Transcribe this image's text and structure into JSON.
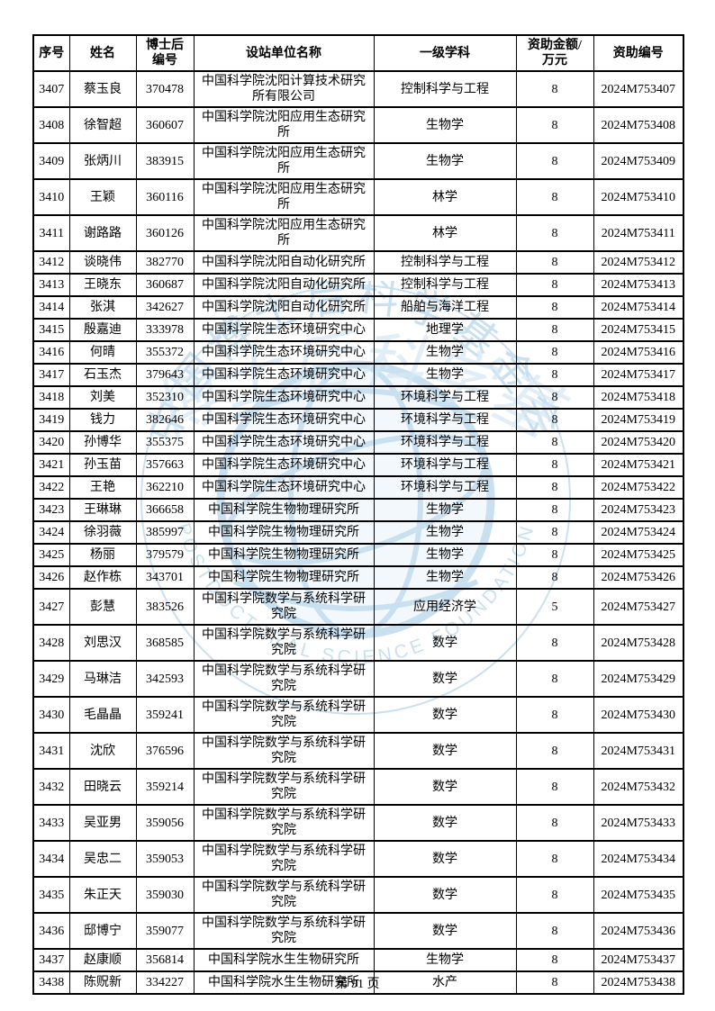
{
  "page": {
    "footer": "第 91 页"
  },
  "watermark": {
    "cn_text": "中国博士后科学基金会",
    "en_text": "POSTDOCTORAL SCIENCE FOUNDATION",
    "cn_calligraphy": "中国博士后科学基金会",
    "color": "#9ec8e4"
  },
  "table": {
    "headers": [
      "序号",
      "姓名",
      "博士后\n编号",
      "设站单位名称",
      "一级学科",
      "资助金额/\n万元",
      "资助编号"
    ],
    "columns": [
      "seq",
      "name",
      "postdoc-no",
      "institution",
      "discipline",
      "amount",
      "grant-no"
    ],
    "rows": [
      [
        "3407",
        "蔡玉良",
        "370478",
        "中国科学院沈阳计算技术研究所有限公司",
        "控制科学与工程",
        "8",
        "2024M753407"
      ],
      [
        "3408",
        "徐智超",
        "360607",
        "中国科学院沈阳应用生态研究所",
        "生物学",
        "8",
        "2024M753408"
      ],
      [
        "3409",
        "张炳川",
        "383915",
        "中国科学院沈阳应用生态研究所",
        "生物学",
        "8",
        "2024M753409"
      ],
      [
        "3410",
        "王颖",
        "360116",
        "中国科学院沈阳应用生态研究所",
        "林学",
        "8",
        "2024M753410"
      ],
      [
        "3411",
        "谢路路",
        "360126",
        "中国科学院沈阳应用生态研究所",
        "林学",
        "8",
        "2024M753411"
      ],
      [
        "3412",
        "谈晓伟",
        "382770",
        "中国科学院沈阳自动化研究所",
        "控制科学与工程",
        "8",
        "2024M753412"
      ],
      [
        "3413",
        "王晓东",
        "360687",
        "中国科学院沈阳自动化研究所",
        "控制科学与工程",
        "8",
        "2024M753413"
      ],
      [
        "3414",
        "张淇",
        "342627",
        "中国科学院沈阳自动化研究所",
        "船舶与海洋工程",
        "8",
        "2024M753414"
      ],
      [
        "3415",
        "殷嘉迪",
        "333978",
        "中国科学院生态环境研究中心",
        "地理学",
        "8",
        "2024M753415"
      ],
      [
        "3416",
        "何晴",
        "355372",
        "中国科学院生态环境研究中心",
        "生物学",
        "8",
        "2024M753416"
      ],
      [
        "3417",
        "石玉杰",
        "379643",
        "中国科学院生态环境研究中心",
        "生物学",
        "8",
        "2024M753417"
      ],
      [
        "3418",
        "刘美",
        "352310",
        "中国科学院生态环境研究中心",
        "环境科学与工程",
        "8",
        "2024M753418"
      ],
      [
        "3419",
        "钱力",
        "382646",
        "中国科学院生态环境研究中心",
        "环境科学与工程",
        "8",
        "2024M753419"
      ],
      [
        "3420",
        "孙博华",
        "355375",
        "中国科学院生态环境研究中心",
        "环境科学与工程",
        "8",
        "2024M753420"
      ],
      [
        "3421",
        "孙玉苗",
        "357663",
        "中国科学院生态环境研究中心",
        "环境科学与工程",
        "8",
        "2024M753421"
      ],
      [
        "3422",
        "王艳",
        "362210",
        "中国科学院生态环境研究中心",
        "环境科学与工程",
        "8",
        "2024M753422"
      ],
      [
        "3423",
        "王琳琳",
        "366658",
        "中国科学院生物物理研究所",
        "生物学",
        "8",
        "2024M753423"
      ],
      [
        "3424",
        "徐羽薇",
        "385997",
        "中国科学院生物物理研究所",
        "生物学",
        "8",
        "2024M753424"
      ],
      [
        "3425",
        "杨丽",
        "379579",
        "中国科学院生物物理研究所",
        "生物学",
        "8",
        "2024M753425"
      ],
      [
        "3426",
        "赵作栋",
        "343701",
        "中国科学院生物物理研究所",
        "生物学",
        "8",
        "2024M753426"
      ],
      [
        "3427",
        "彭慧",
        "383526",
        "中国科学院数学与系统科学研究院",
        "应用经济学",
        "5",
        "2024M753427"
      ],
      [
        "3428",
        "刘思汉",
        "368585",
        "中国科学院数学与系统科学研究院",
        "数学",
        "8",
        "2024M753428"
      ],
      [
        "3429",
        "马琳洁",
        "342593",
        "中国科学院数学与系统科学研究院",
        "数学",
        "8",
        "2024M753429"
      ],
      [
        "3430",
        "毛晶晶",
        "359241",
        "中国科学院数学与系统科学研究院",
        "数学",
        "8",
        "2024M753430"
      ],
      [
        "3431",
        "沈欣",
        "376596",
        "中国科学院数学与系统科学研究院",
        "数学",
        "8",
        "2024M753431"
      ],
      [
        "3432",
        "田晓云",
        "359214",
        "中国科学院数学与系统科学研究院",
        "数学",
        "8",
        "2024M753432"
      ],
      [
        "3433",
        "吴亚男",
        "359056",
        "中国科学院数学与系统科学研究院",
        "数学",
        "8",
        "2024M753433"
      ],
      [
        "3434",
        "吴忠二",
        "359053",
        "中国科学院数学与系统科学研究院",
        "数学",
        "8",
        "2024M753434"
      ],
      [
        "3435",
        "朱正天",
        "359030",
        "中国科学院数学与系统科学研究院",
        "数学",
        "8",
        "2024M753435"
      ],
      [
        "3436",
        "邸博宁",
        "359077",
        "中国科学院数学与系统科学研究院",
        "数学",
        "8",
        "2024M753436"
      ],
      [
        "3437",
        "赵康顺",
        "356814",
        "中国科学院水生生物研究所",
        "生物学",
        "8",
        "2024M753437"
      ],
      [
        "3438",
        "陈贶新",
        "334227",
        "中国科学院水生生物研究所",
        "水产",
        "8",
        "2024M753438"
      ]
    ]
  }
}
